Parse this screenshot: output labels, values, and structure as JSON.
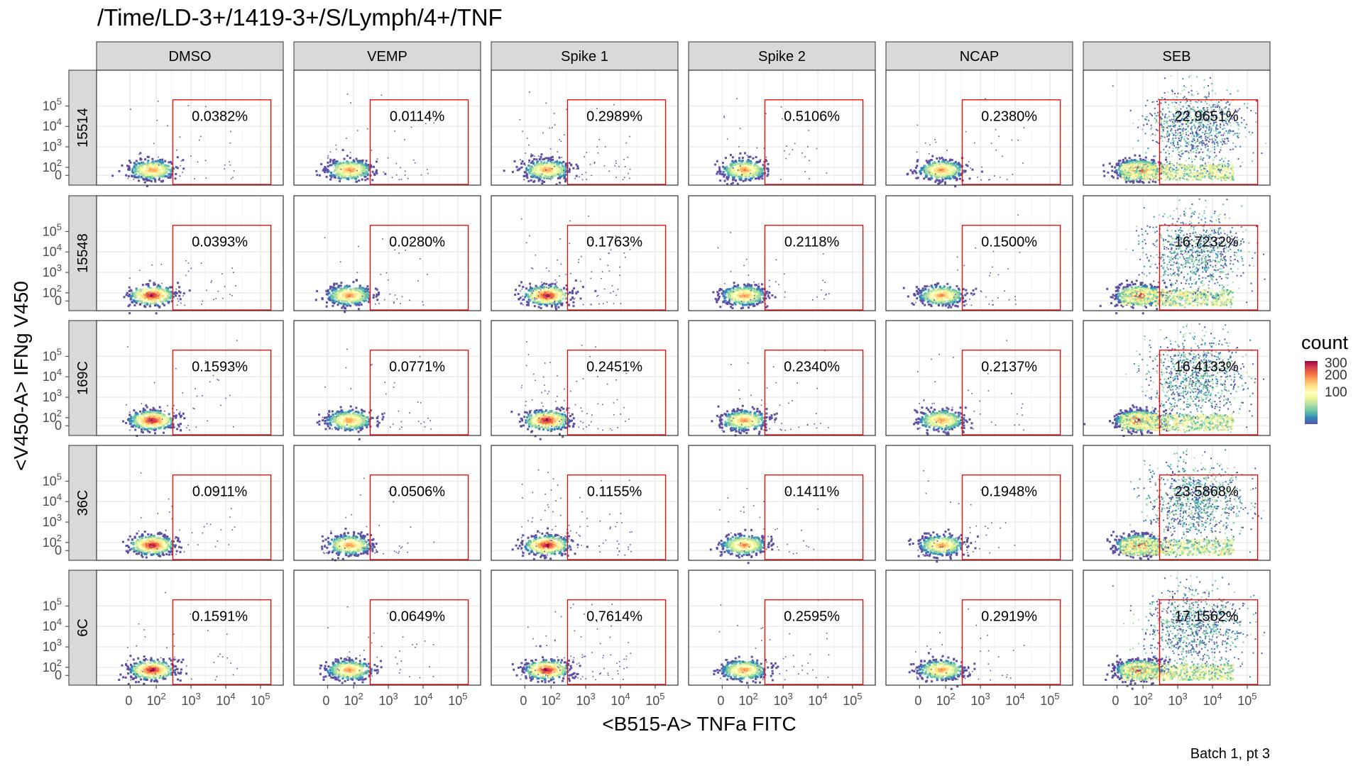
{
  "title": "/Time/LD-3+/1419-3+/S/Lymph/4+/TNF",
  "caption": "Batch 1, pt 3",
  "chart_data": {
    "type": "heatmap",
    "subtype": "faceted 2D-density scatter (flow cytometry gate)",
    "xlabel": "<B515-A> TNFa FITC",
    "ylabel": "<V450-A> IFNg V450",
    "columns": [
      "DMSO",
      "VEMP",
      "Spike 1",
      "Spike 2",
      "NCAP",
      "SEB"
    ],
    "rows": [
      "15514",
      "15548",
      "169C",
      "36C",
      "6C"
    ],
    "x_ticks": [
      "0",
      "10^2",
      "10^3",
      "10^4",
      "10^5"
    ],
    "y_ticks": [
      "0",
      "10^2",
      "10^3",
      "10^4",
      "10^5"
    ],
    "x_scale": "biexponential",
    "y_scale": "biexponential",
    "gate": {
      "x_min": 300,
      "x_max": 200000,
      "y_min": 0,
      "y_max": 200000,
      "color": "#ff0000"
    },
    "percentages": [
      [
        "0.0382%",
        "0.0114%",
        "0.2989%",
        "0.5106%",
        "0.2380%",
        "22.9651%"
      ],
      [
        "0.0393%",
        "0.0280%",
        "0.1763%",
        "0.2118%",
        "0.1500%",
        "16.7232%"
      ],
      [
        "0.1593%",
        "0.0771%",
        "0.2451%",
        "0.2340%",
        "0.2137%",
        "16.4133%"
      ],
      [
        "0.0911%",
        "0.0506%",
        "0.1155%",
        "0.1411%",
        "0.1948%",
        "23.5868%"
      ],
      [
        "0.1591%",
        "0.0649%",
        "0.7614%",
        "0.2595%",
        "0.2919%",
        "17.1562%"
      ]
    ],
    "legend": {
      "title": "count",
      "ticks": [
        "100",
        "200",
        "300"
      ],
      "colors": [
        "#5e4fa2",
        "#3288bd",
        "#66c2a5",
        "#abdda4",
        "#e6f598",
        "#ffffbf",
        "#fee08b",
        "#fdae61",
        "#f46d43",
        "#d53e4f",
        "#9e0142"
      ],
      "placement": "right"
    },
    "grid": true,
    "strip_fill": "#d9d9d9"
  }
}
